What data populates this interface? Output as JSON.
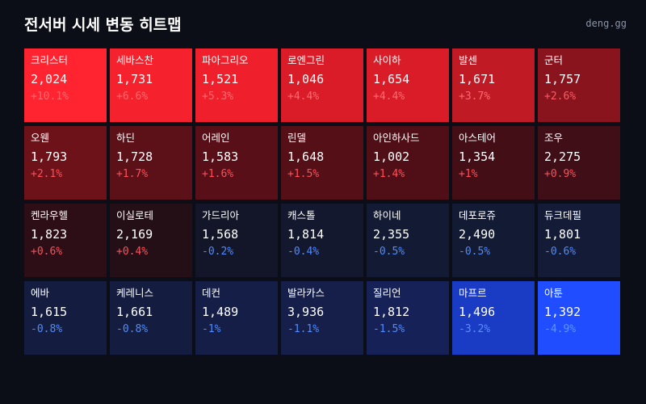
{
  "header": {
    "title": "전서버 시세 변동 히트맵",
    "brand": "deng.gg"
  },
  "items": [
    {
      "name": "크리스터",
      "price": "2,024",
      "change": "+10.1%",
      "bg": "#ff2430",
      "fg": "#ff6b72"
    },
    {
      "name": "세바스찬",
      "price": "1,731",
      "change": "+6.6%",
      "bg": "#f5222e",
      "fg": "#ff6b72"
    },
    {
      "name": "파아그리오",
      "price": "1,521",
      "change": "+5.3%",
      "bg": "#ef202c",
      "fg": "#ff6b72"
    },
    {
      "name": "로엔그린",
      "price": "1,046",
      "change": "+4.4%",
      "bg": "#d91c27",
      "fg": "#ff6b72"
    },
    {
      "name": "사이하",
      "price": "1,654",
      "change": "+4.4%",
      "bg": "#d91c27",
      "fg": "#ff6b72"
    },
    {
      "name": "발센",
      "price": "1,671",
      "change": "+3.7%",
      "bg": "#c01a25",
      "fg": "#ff6b72"
    },
    {
      "name": "군터",
      "price": "1,757",
      "change": "+2.6%",
      "bg": "#8a141d",
      "fg": "#ff5a63"
    },
    {
      "name": "오웬",
      "price": "1,793",
      "change": "+2.1%",
      "bg": "#6e1219",
      "fg": "#ff4f59"
    },
    {
      "name": "하딘",
      "price": "1,728",
      "change": "+1.7%",
      "bg": "#5c1018",
      "fg": "#ff4f59"
    },
    {
      "name": "어레인",
      "price": "1,583",
      "change": "+1.6%",
      "bg": "#580f17",
      "fg": "#ff4f59"
    },
    {
      "name": "린델",
      "price": "1,648",
      "change": "+1.5%",
      "bg": "#540f17",
      "fg": "#ff4f59"
    },
    {
      "name": "아인하사드",
      "price": "1,002",
      "change": "+1.4%",
      "bg": "#500f17",
      "fg": "#ff4f59"
    },
    {
      "name": "아스테어",
      "price": "1,354",
      "change": "+1%",
      "bg": "#430e16",
      "fg": "#ff4f59"
    },
    {
      "name": "조우",
      "price": "2,275",
      "change": "+0.9%",
      "bg": "#400e16",
      "fg": "#ff4f59"
    },
    {
      "name": "켄라우헬",
      "price": "1,823",
      "change": "+0.6%",
      "bg": "#2e0e16",
      "fg": "#ff4f59"
    },
    {
      "name": "이실로테",
      "price": "2,169",
      "change": "+0.4%",
      "bg": "#250f17",
      "fg": "#ff4f59"
    },
    {
      "name": "가드리아",
      "price": "1,568",
      "change": "-0.2%",
      "bg": "#131628",
      "fg": "#4d8bff"
    },
    {
      "name": "캐스톨",
      "price": "1,814",
      "change": "-0.4%",
      "bg": "#13182f",
      "fg": "#4d8bff"
    },
    {
      "name": "하이네",
      "price": "2,355",
      "change": "-0.5%",
      "bg": "#131a33",
      "fg": "#4d8bff"
    },
    {
      "name": "데포로쥬",
      "price": "2,490",
      "change": "-0.5%",
      "bg": "#131a33",
      "fg": "#4d8bff"
    },
    {
      "name": "듀크데필",
      "price": "1,801",
      "change": "-0.6%",
      "bg": "#141b37",
      "fg": "#4d8bff"
    },
    {
      "name": "에바",
      "price": "1,615",
      "change": "-0.8%",
      "bg": "#141d40",
      "fg": "#4d8bff"
    },
    {
      "name": "케레니스",
      "price": "1,661",
      "change": "-0.8%",
      "bg": "#141d40",
      "fg": "#4d8bff"
    },
    {
      "name": "데컨",
      "price": "1,489",
      "change": "-1%",
      "bg": "#141e47",
      "fg": "#4d8bff"
    },
    {
      "name": "발라카스",
      "price": "3,936",
      "change": "-1.1%",
      "bg": "#151f4a",
      "fg": "#4d8bff"
    },
    {
      "name": "질리언",
      "price": "1,812",
      "change": "-1.5%",
      "bg": "#152157",
      "fg": "#4d8bff"
    },
    {
      "name": "마프르",
      "price": "1,496",
      "change": "-3.2%",
      "bg": "#1a3bc4",
      "fg": "#5a8dff"
    },
    {
      "name": "아툰",
      "price": "1,392",
      "change": "-4.9%",
      "bg": "#1f4dff",
      "fg": "#5f95ff"
    }
  ]
}
